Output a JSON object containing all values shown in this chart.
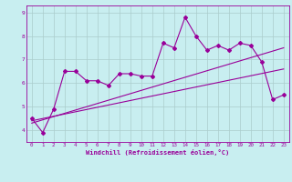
{
  "x": [
    0,
    1,
    2,
    3,
    4,
    5,
    6,
    7,
    8,
    9,
    10,
    11,
    12,
    13,
    14,
    15,
    16,
    17,
    18,
    19,
    20,
    21,
    22,
    23
  ],
  "line1": [
    4.5,
    3.9,
    4.9,
    6.5,
    6.5,
    6.1,
    6.1,
    5.9,
    6.4,
    6.4,
    6.3,
    6.3,
    7.7,
    7.5,
    8.8,
    8.0,
    7.4,
    7.6,
    7.4,
    7.7,
    7.6,
    6.9,
    5.3,
    5.5
  ],
  "line2_x": [
    0,
    23
  ],
  "line2_y": [
    4.4,
    6.6
  ],
  "line3_x": [
    0,
    23
  ],
  "line3_y": [
    4.3,
    7.5
  ],
  "background_color": "#c8eef0",
  "line_color": "#990099",
  "grid_color": "#aacccc",
  "xlim": [
    -0.5,
    23.5
  ],
  "ylim": [
    3.5,
    9.3
  ],
  "yticks": [
    4,
    5,
    6,
    7,
    8,
    9
  ],
  "xticks": [
    0,
    1,
    2,
    3,
    4,
    5,
    6,
    7,
    8,
    9,
    10,
    11,
    12,
    13,
    14,
    15,
    16,
    17,
    18,
    19,
    20,
    21,
    22,
    23
  ],
  "xlabel": "Windchill (Refroidissement éolien,°C)",
  "marker": "D",
  "markersize": 2.0,
  "linewidth": 0.8
}
